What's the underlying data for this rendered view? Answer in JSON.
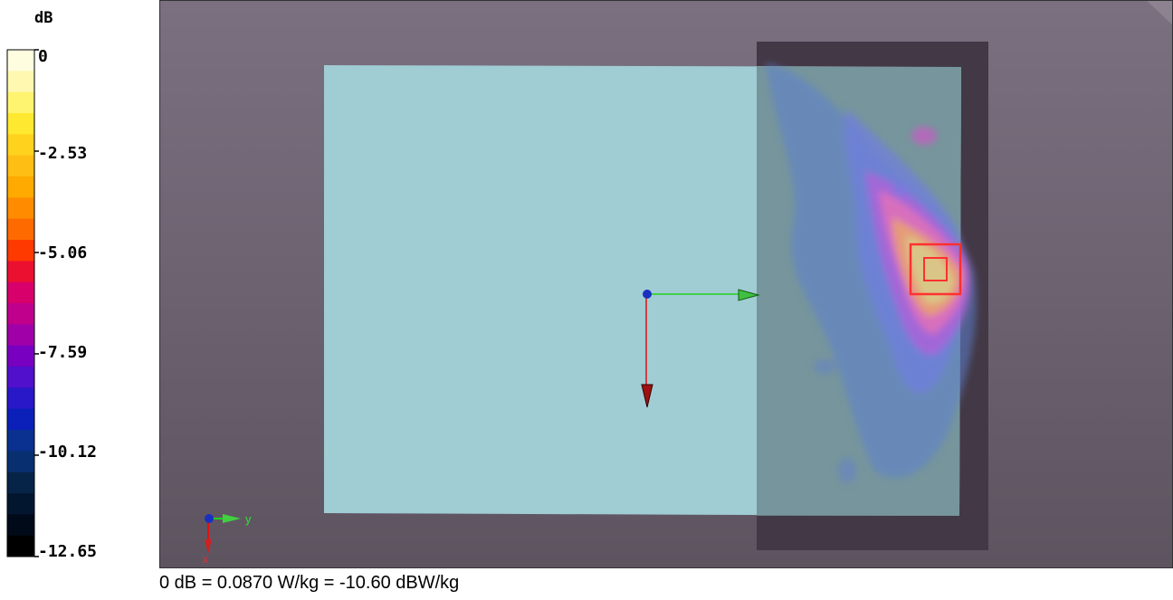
{
  "colorbar": {
    "unit": "dB",
    "ticks": [
      "0",
      "-2.53",
      "-5.06",
      "-7.59",
      "-10.12",
      "-12.65"
    ],
    "colors": [
      "#fffde0",
      "#fff8b0",
      "#fff470",
      "#ffe830",
      "#ffd21e",
      "#ffbe14",
      "#ffaa00",
      "#ff8c00",
      "#ff6a00",
      "#ff3a00",
      "#ec1030",
      "#d8006a",
      "#c0008c",
      "#a000a8",
      "#7800c0",
      "#5010cc",
      "#2818c8",
      "#0a20b8",
      "#0a3090",
      "#083070",
      "#052448",
      "#031630",
      "#010a18",
      "#000000"
    ]
  },
  "scene": {
    "background": "#6a5f6c",
    "phantom_color": "#a0ccd4",
    "axis_labels": {
      "y": "y",
      "x": "x"
    },
    "hotspot": {
      "peak_db": 0
    }
  },
  "footer": {
    "reference": "0 dB = 0.0870 W/kg = -10.60 dBW/kg"
  }
}
